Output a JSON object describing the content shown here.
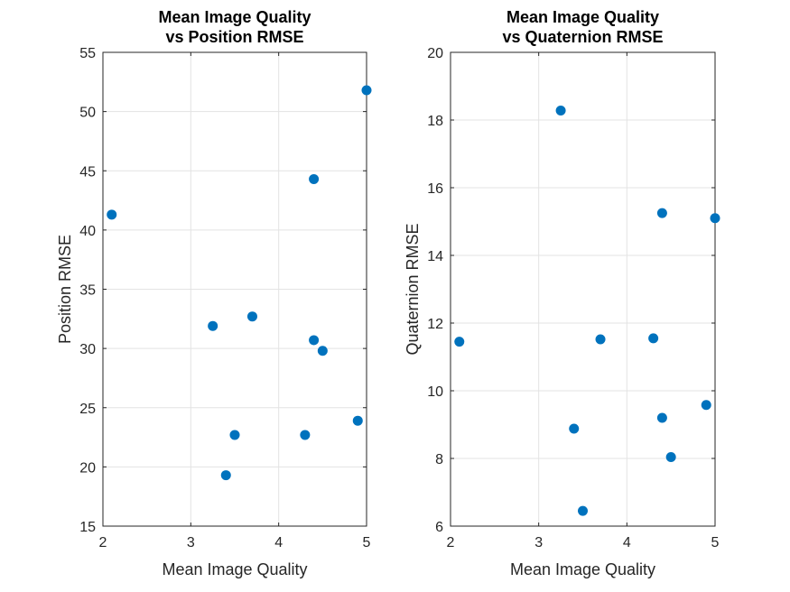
{
  "chart_data": [
    {
      "type": "scatter",
      "title_lines": [
        "Mean Image Quality",
        "vs Position RMSE"
      ],
      "xlabel": "Mean Image Quality",
      "ylabel": "Position RMSE",
      "xlim": [
        2,
        5
      ],
      "ylim": [
        15,
        55
      ],
      "xticks": [
        2,
        3,
        4,
        5
      ],
      "yticks": [
        15,
        20,
        25,
        30,
        35,
        40,
        45,
        50,
        55
      ],
      "grid": true,
      "marker_color": "#0072BD",
      "x": [
        2.1,
        3.25,
        3.4,
        3.5,
        3.7,
        4.3,
        4.4,
        4.4,
        4.5,
        4.9,
        5.0
      ],
      "y": [
        41.3,
        31.9,
        19.3,
        22.7,
        32.7,
        22.7,
        30.7,
        44.3,
        29.8,
        23.9,
        51.8
      ]
    },
    {
      "type": "scatter",
      "title_lines": [
        "Mean Image Quality",
        "vs Quaternion RMSE"
      ],
      "xlabel": "Mean Image Quality",
      "ylabel": "Quaternion RMSE",
      "xlim": [
        2,
        5
      ],
      "ylim": [
        6,
        20
      ],
      "xticks": [
        2,
        3,
        4,
        5
      ],
      "yticks": [
        6,
        8,
        10,
        12,
        14,
        16,
        18,
        20
      ],
      "grid": true,
      "marker_color": "#0072BD",
      "x": [
        2.1,
        3.25,
        3.4,
        3.5,
        3.7,
        4.3,
        4.4,
        4.4,
        4.5,
        4.9,
        5.0
      ],
      "y": [
        11.45,
        18.28,
        8.88,
        6.45,
        11.52,
        11.55,
        9.2,
        15.25,
        8.04,
        9.58,
        15.1
      ]
    }
  ]
}
